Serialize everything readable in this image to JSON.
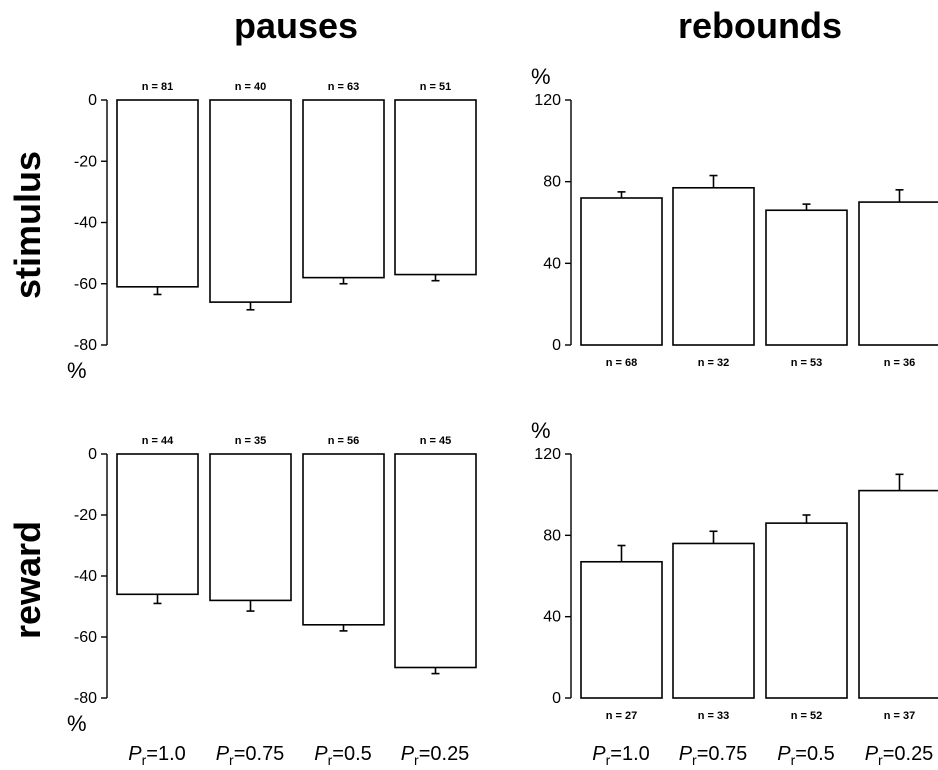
{
  "column_titles": [
    "pauses",
    "rebounds"
  ],
  "row_titles": [
    "stimulus",
    "reward"
  ],
  "unit": "%",
  "x_labels": [
    {
      "main": "P",
      "sub": "r",
      "rest": "=1.0"
    },
    {
      "main": "P",
      "sub": "r",
      "rest": "=0.75"
    },
    {
      "main": "P",
      "sub": "r",
      "rest": "=0.5"
    },
    {
      "main": "P",
      "sub": "r",
      "rest": "=0.25"
    }
  ],
  "chart_data": [
    {
      "type": "bar",
      "column": "pauses",
      "row": "stimulus",
      "categories": [
        "Pr=1.0",
        "Pr=0.75",
        "Pr=0.5",
        "Pr=0.25"
      ],
      "values": [
        -61,
        -66,
        -58,
        -57
      ],
      "errors": [
        2.5,
        2.5,
        2,
        2
      ],
      "n_labels": [
        "n = 81",
        "n = 40",
        "n = 63",
        "n = 51"
      ],
      "ylim": [
        -80,
        0
      ],
      "yticks": [
        0,
        -20,
        -40,
        -60,
        -80
      ],
      "ylabel": "%"
    },
    {
      "type": "bar",
      "column": "rebounds",
      "row": "stimulus",
      "categories": [
        "Pr=1.0",
        "Pr=0.75",
        "Pr=0.5",
        "Pr=0.25"
      ],
      "values": [
        72,
        77,
        66,
        70
      ],
      "errors": [
        3,
        6,
        3,
        6
      ],
      "n_labels": [
        "n = 68",
        "n = 32",
        "n = 53",
        "n = 36"
      ],
      "ylim": [
        0,
        120
      ],
      "yticks": [
        0,
        40,
        80,
        120
      ],
      "ylabel": "%"
    },
    {
      "type": "bar",
      "column": "pauses",
      "row": "reward",
      "categories": [
        "Pr=1.0",
        "Pr=0.75",
        "Pr=0.5",
        "Pr=0.25"
      ],
      "values": [
        -46,
        -48,
        -56,
        -70
      ],
      "errors": [
        3,
        3.5,
        2,
        2
      ],
      "n_labels": [
        "n = 44",
        "n = 35",
        "n = 56",
        "n = 45"
      ],
      "ylim": [
        -80,
        0
      ],
      "yticks": [
        0,
        -20,
        -40,
        -60,
        -80
      ],
      "ylabel": "%"
    },
    {
      "type": "bar",
      "column": "rebounds",
      "row": "reward",
      "categories": [
        "Pr=1.0",
        "Pr=0.75",
        "Pr=0.5",
        "Pr=0.25"
      ],
      "values": [
        67,
        76,
        86,
        102
      ],
      "errors": [
        8,
        6,
        4,
        8
      ],
      "n_labels": [
        "n = 27",
        "n = 33",
        "n = 52",
        "n = 37"
      ],
      "ylim": [
        0,
        120
      ],
      "yticks": [
        0,
        40,
        80,
        120
      ],
      "ylabel": "%"
    }
  ]
}
